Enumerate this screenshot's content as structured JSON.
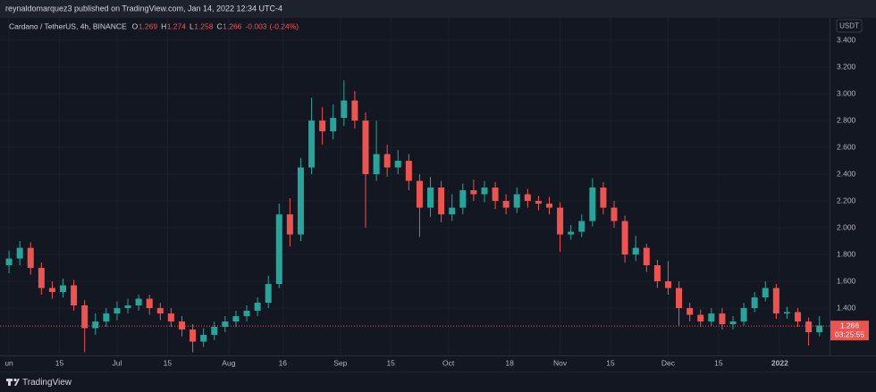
{
  "header": {
    "byline": "reynaldomarquez3 published on TradingView.com, Jan 14, 2022 12:34 UTC-4"
  },
  "chart_data": {
    "type": "candlestick",
    "symbol": "Cardano / TetherUS, 4h, BINANCE",
    "ohlc_legend": [
      {
        "label": "O",
        "value": 1.269
      },
      {
        "label": "H",
        "value": 1.274
      },
      {
        "label": "L",
        "value": 1.258
      },
      {
        "label": "C",
        "value": 1.266
      }
    ],
    "change": -0.003,
    "change_pct": "(-0.24%)",
    "currency": "USDT",
    "up_color": "#26a69a",
    "down_color": "#ef5350",
    "grid": true,
    "x": [
      0,
      3,
      6,
      9,
      12,
      15,
      18,
      21,
      24,
      27,
      30,
      33,
      36,
      39,
      42,
      45,
      48,
      51,
      54,
      57,
      60,
      63,
      66,
      69,
      72,
      75,
      78,
      81,
      84,
      87,
      90,
      93,
      96,
      99,
      102,
      105,
      108,
      111,
      114,
      117,
      120,
      123,
      126,
      129,
      132,
      135,
      138,
      141,
      144,
      147,
      150,
      153,
      156,
      159,
      162,
      165,
      168,
      171,
      174,
      177,
      180,
      183,
      186,
      189,
      192,
      195,
      198,
      201,
      204,
      207,
      210,
      213,
      216,
      219,
      222,
      225
    ],
    "open": [
      1.72,
      1.77,
      1.85,
      1.7,
      1.55,
      1.52,
      1.57,
      1.42,
      1.25,
      1.3,
      1.36,
      1.4,
      1.42,
      1.47,
      1.4,
      1.36,
      1.3,
      1.24,
      1.15,
      1.2,
      1.26,
      1.3,
      1.34,
      1.38,
      1.44,
      1.58,
      2.1,
      1.95,
      2.45,
      2.8,
      2.72,
      2.82,
      2.95,
      2.8,
      2.4,
      2.55,
      2.45,
      2.5,
      2.35,
      2.15,
      2.3,
      2.1,
      2.15,
      2.28,
      2.25,
      2.3,
      2.2,
      2.15,
      2.25,
      2.2,
      2.18,
      2.15,
      1.95,
      1.97,
      2.05,
      2.3,
      2.15,
      2.05,
      1.8,
      1.85,
      1.72,
      1.6,
      1.55,
      1.4,
      1.35,
      1.3,
      1.36,
      1.28,
      1.3,
      1.4,
      1.48,
      1.55,
      1.36,
      1.37,
      1.3,
      1.22
    ],
    "high": [
      1.83,
      1.9,
      1.89,
      1.74,
      1.6,
      1.62,
      1.61,
      1.46,
      1.36,
      1.4,
      1.45,
      1.47,
      1.5,
      1.5,
      1.44,
      1.4,
      1.34,
      1.28,
      1.25,
      1.3,
      1.34,
      1.38,
      1.42,
      1.48,
      1.64,
      2.18,
      2.22,
      2.52,
      2.97,
      2.9,
      2.92,
      3.1,
      3.02,
      2.86,
      2.8,
      2.62,
      2.58,
      2.55,
      2.4,
      2.38,
      2.35,
      2.25,
      2.33,
      2.36,
      2.35,
      2.34,
      2.25,
      2.3,
      2.29,
      2.24,
      2.23,
      2.19,
      2.02,
      2.1,
      2.37,
      2.34,
      2.2,
      2.09,
      1.94,
      1.88,
      1.76,
      1.75,
      1.6,
      1.44,
      1.39,
      1.4,
      1.4,
      1.34,
      1.44,
      1.52,
      1.6,
      1.58,
      1.41,
      1.4,
      1.33,
      1.34
    ],
    "low": [
      1.66,
      1.72,
      1.65,
      1.5,
      1.47,
      1.48,
      1.38,
      1.07,
      1.2,
      1.26,
      1.31,
      1.36,
      1.38,
      1.35,
      1.31,
      1.26,
      1.19,
      1.07,
      1.11,
      1.16,
      1.22,
      1.26,
      1.3,
      1.34,
      1.4,
      1.55,
      1.86,
      1.9,
      2.4,
      2.62,
      2.66,
      2.76,
      2.74,
      2.0,
      2.35,
      2.38,
      2.4,
      2.28,
      1.93,
      2.08,
      2.04,
      2.05,
      2.1,
      2.2,
      2.19,
      2.14,
      2.1,
      2.11,
      2.15,
      2.13,
      2.1,
      1.82,
      1.91,
      1.93,
      2.01,
      2.1,
      2.0,
      1.74,
      1.75,
      1.67,
      1.55,
      1.5,
      1.27,
      1.3,
      1.26,
      1.27,
      1.24,
      1.24,
      1.27,
      1.37,
      1.45,
      1.32,
      1.32,
      1.26,
      1.12,
      1.19
    ],
    "close": [
      1.77,
      1.85,
      1.7,
      1.55,
      1.52,
      1.57,
      1.42,
      1.25,
      1.3,
      1.36,
      1.4,
      1.42,
      1.47,
      1.4,
      1.36,
      1.3,
      1.24,
      1.15,
      1.2,
      1.26,
      1.3,
      1.34,
      1.38,
      1.44,
      1.58,
      2.1,
      1.95,
      2.45,
      2.8,
      2.72,
      2.82,
      2.95,
      2.8,
      2.4,
      2.55,
      2.45,
      2.5,
      2.35,
      2.15,
      2.3,
      2.1,
      2.15,
      2.28,
      2.25,
      2.3,
      2.2,
      2.15,
      2.25,
      2.2,
      2.18,
      2.15,
      1.95,
      1.97,
      2.05,
      2.3,
      2.15,
      2.05,
      1.8,
      1.85,
      1.72,
      1.6,
      1.55,
      1.4,
      1.35,
      1.3,
      1.36,
      1.28,
      1.3,
      1.4,
      1.48,
      1.55,
      1.36,
      1.37,
      1.3,
      1.22,
      1.27
    ],
    "xlim": [
      -2.5,
      228.3
    ],
    "xticks": [
      {
        "value": 0,
        "label": "un"
      },
      {
        "value": 14,
        "label": "15"
      },
      {
        "value": 30,
        "label": "Jul"
      },
      {
        "value": 44,
        "label": "15"
      },
      {
        "value": 61,
        "label": "Aug"
      },
      {
        "value": 76,
        "label": "16"
      },
      {
        "value": 92,
        "label": "Sep"
      },
      {
        "value": 106,
        "label": "15"
      },
      {
        "value": 122,
        "label": "Oct"
      },
      {
        "value": 139,
        "label": "18"
      },
      {
        "value": 153,
        "label": "Nov"
      },
      {
        "value": 167,
        "label": "15"
      },
      {
        "value": 183,
        "label": "Dec"
      },
      {
        "value": 197,
        "label": "15"
      },
      {
        "value": 214,
        "label": "2022"
      }
    ],
    "ylim": [
      1.047,
      3.567
    ],
    "yticks": [
      {
        "value": 1.4,
        "label": "1.400"
      },
      {
        "value": 1.6,
        "label": "1.600"
      },
      {
        "value": 1.8,
        "label": "1.800"
      },
      {
        "value": 2.0,
        "label": "2.000"
      },
      {
        "value": 2.2,
        "label": "2.200"
      },
      {
        "value": 2.4,
        "label": "2.400"
      },
      {
        "value": 2.6,
        "label": "2.600"
      },
      {
        "value": 2.8,
        "label": "2.800"
      },
      {
        "value": 3.0,
        "label": "3.000"
      },
      {
        "value": 3.2,
        "label": "3.200"
      },
      {
        "value": 3.4,
        "label": "3.400"
      }
    ],
    "last_price": 1.266,
    "countdown": "03:25:55"
  },
  "footer": {
    "brand": "TradingView"
  }
}
